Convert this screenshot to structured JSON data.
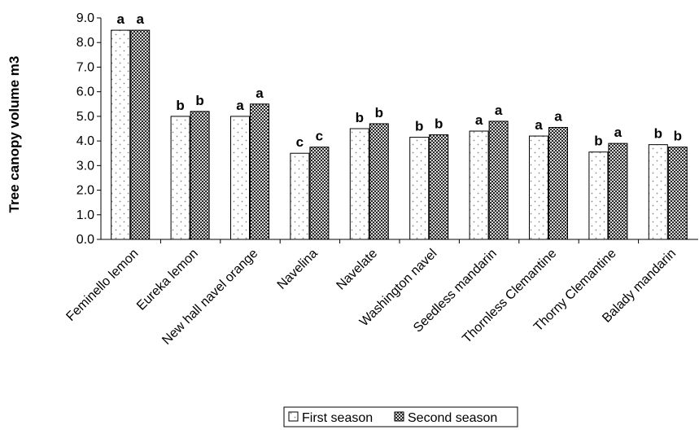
{
  "chart_data": {
    "type": "bar",
    "title": "",
    "xlabel": "",
    "ylabel": "Tree canopy volume m3",
    "ylim": [
      0,
      9
    ],
    "yticks": [
      "0.0",
      "1.0",
      "2.0",
      "3.0",
      "4.0",
      "5.0",
      "6.0",
      "7.0",
      "8.0",
      "9.0"
    ],
    "grid": false,
    "legend_position": "bottom",
    "categories": [
      "Feminello lemon",
      "Eureka lemon",
      "New hall navel orange",
      "Navelina",
      "Navelate",
      "Washington navel",
      "Seedless mandarin",
      "Thornless Clemantine",
      "Thorny Clemantine",
      "Balady mandarin"
    ],
    "series": [
      {
        "name": "First season",
        "pattern": "dotted",
        "values": [
          8.5,
          5.0,
          5.0,
          3.5,
          4.5,
          4.15,
          4.4,
          4.2,
          3.55,
          3.85
        ],
        "significance": [
          "a",
          "b",
          "a",
          "c",
          "b",
          "b",
          "a",
          "a",
          "b",
          "b"
        ]
      },
      {
        "name": "Second season",
        "pattern": "checkered",
        "values": [
          8.5,
          5.2,
          5.5,
          3.75,
          4.7,
          4.25,
          4.8,
          4.55,
          3.9,
          3.75
        ],
        "significance": [
          "a",
          "b",
          "a",
          "c",
          "b",
          "b",
          "a",
          "a",
          "a",
          "b"
        ]
      }
    ]
  }
}
